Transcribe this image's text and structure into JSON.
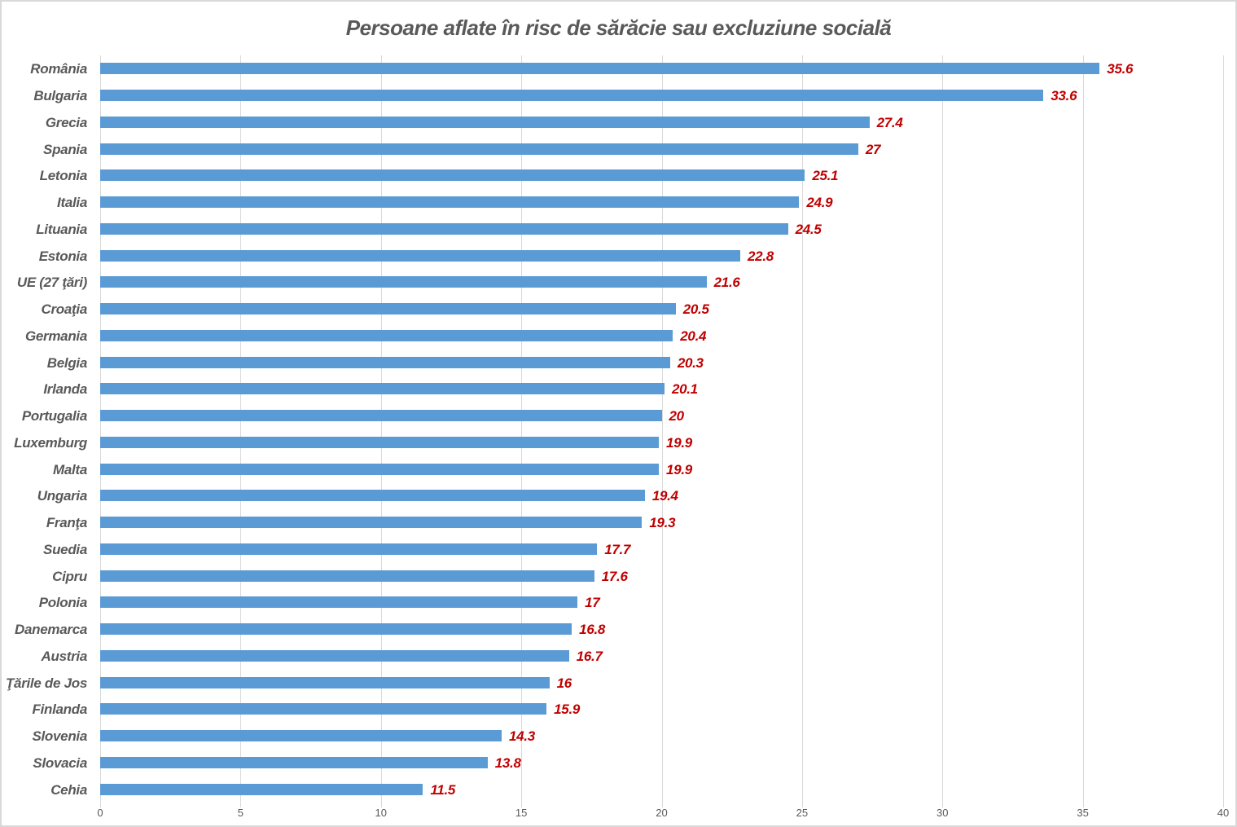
{
  "chart_data": {
    "type": "bar",
    "orientation": "horizontal",
    "title": "Persoane aflate în risc de sărăcie sau excluziune socială",
    "categories": [
      "România",
      "Bulgaria",
      "Grecia",
      "Spania",
      "Letonia",
      "Italia",
      "Lituania",
      "Estonia",
      "UE (27 ţări)",
      "Croaţia",
      "Germania",
      "Belgia",
      "Irlanda",
      "Portugalia",
      "Luxemburg",
      "Malta",
      "Ungaria",
      "Franţa",
      "Suedia",
      "Cipru",
      "Polonia",
      "Danemarca",
      "Austria",
      "Ţările de Jos",
      "Finlanda",
      "Slovenia",
      "Slovacia",
      "Cehia"
    ],
    "values": [
      35.6,
      33.6,
      27.4,
      27,
      25.1,
      24.9,
      24.5,
      22.8,
      21.6,
      20.5,
      20.4,
      20.3,
      20.1,
      20,
      19.9,
      19.9,
      19.4,
      19.3,
      17.7,
      17.6,
      17,
      16.8,
      16.7,
      16,
      15.9,
      14.3,
      13.8,
      11.5
    ],
    "value_labels": [
      "35.6",
      "33.6",
      "27.4",
      "27",
      "25.1",
      "24.9",
      "24.5",
      "22.8",
      "21.6",
      "20.5",
      "20.4",
      "20.3",
      "20.1",
      "20",
      "19.9",
      "19.9",
      "19.4",
      "19.3",
      "17.7",
      "17.6",
      "17",
      "16.8",
      "16.7",
      "16",
      "15.9",
      "14.3",
      "13.8",
      "11.5"
    ],
    "x_ticks": [
      "0",
      "5",
      "10",
      "15",
      "20",
      "25",
      "30",
      "35",
      "40"
    ],
    "xlim": [
      0,
      40
    ],
    "xlabel": "",
    "ylabel": "",
    "grid": true,
    "legend": "none",
    "colors": {
      "bar": "#5b9bd5",
      "value_label": "#c00000",
      "category_label": "#595959",
      "title": "#595959",
      "tick_label": "#595959",
      "gridline": "#d9d9d9",
      "background": "#ffffff"
    }
  }
}
